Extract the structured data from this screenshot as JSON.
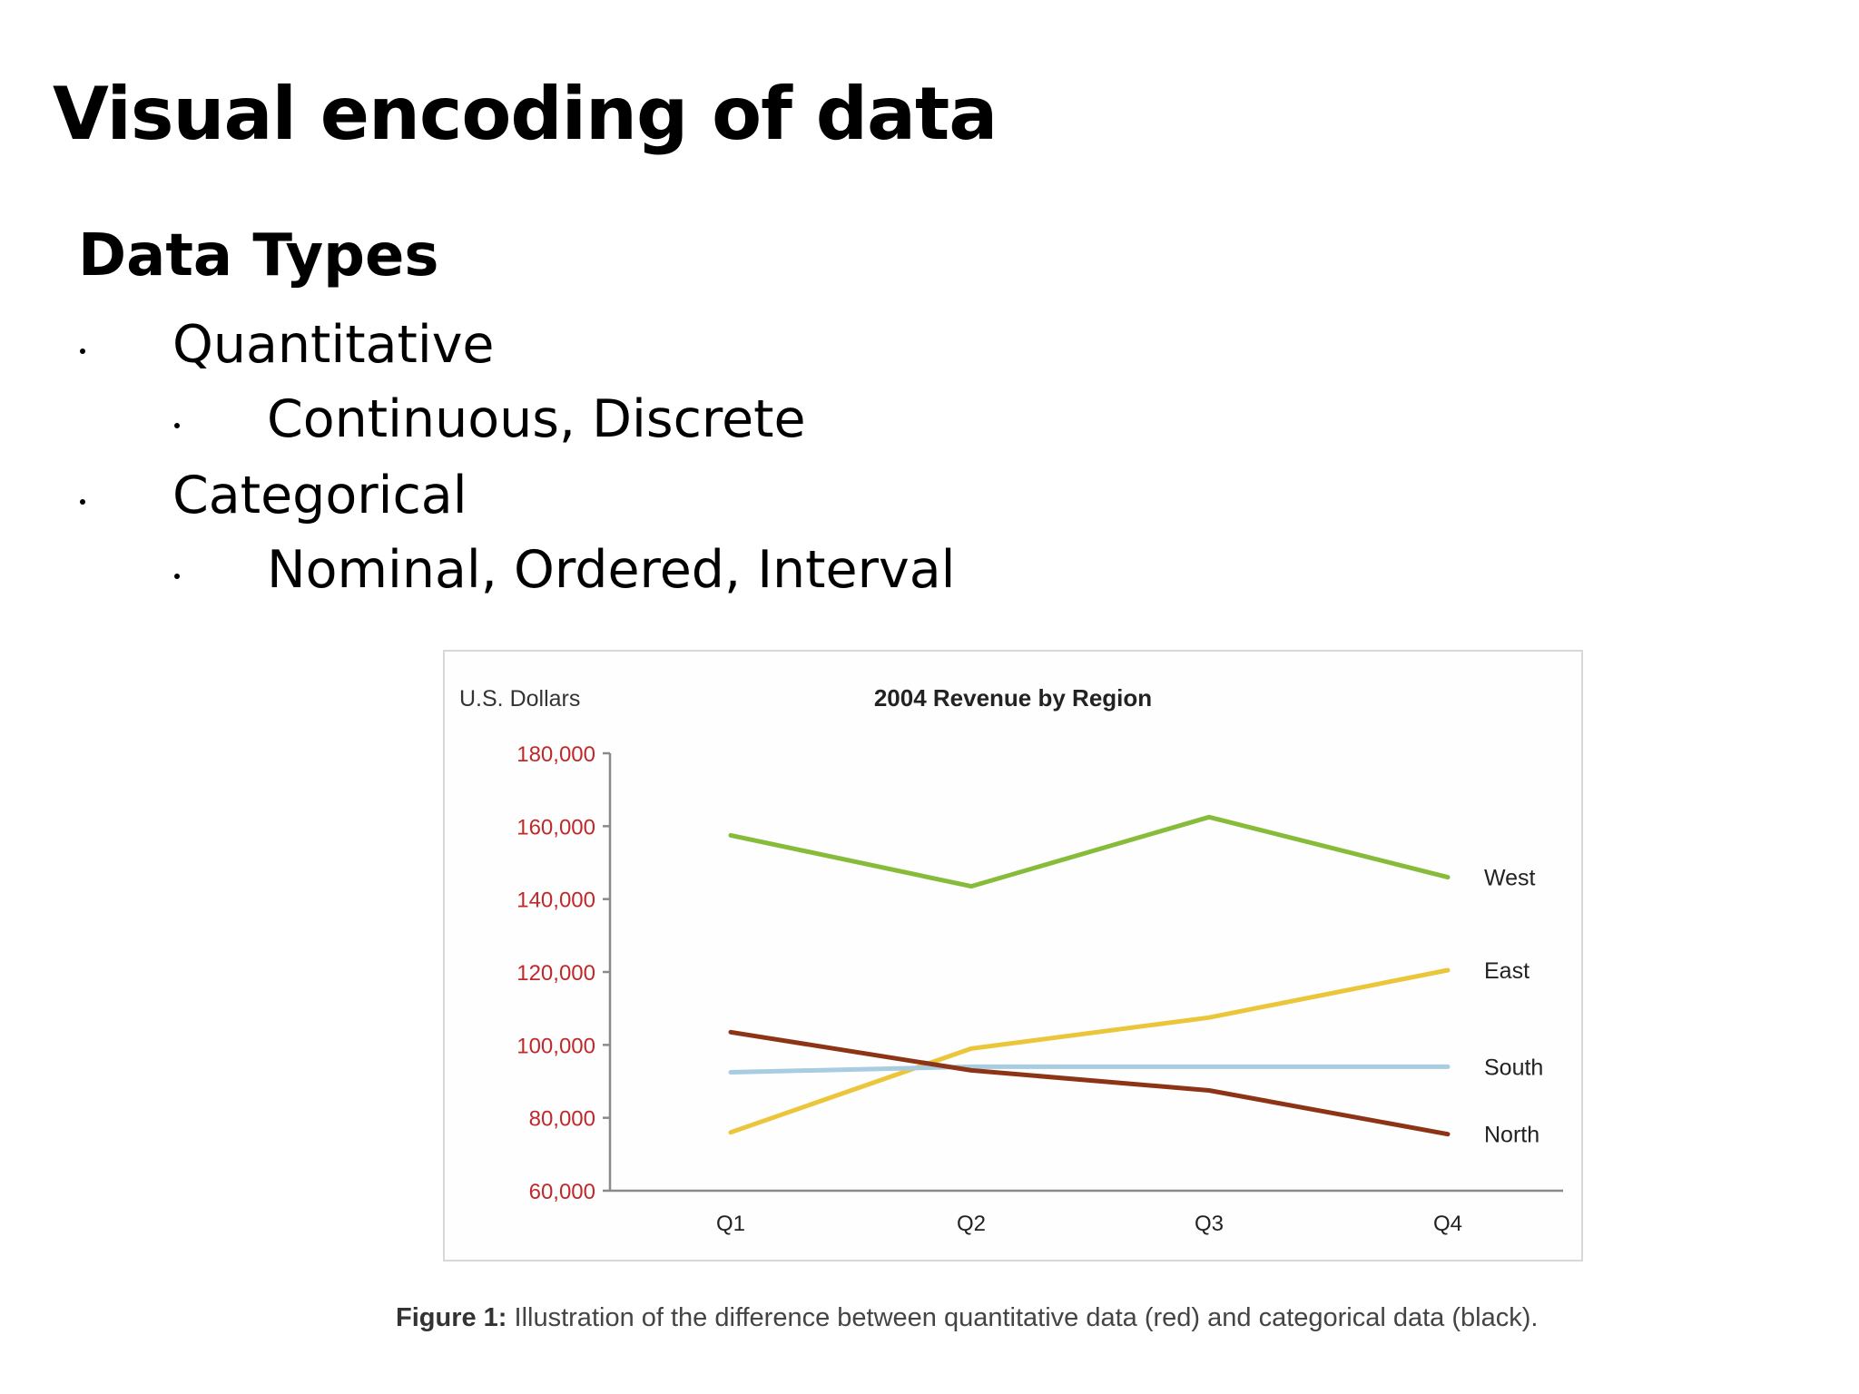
{
  "slide": {
    "title": "Visual encoding of data",
    "heading": "Data Types",
    "bullets": [
      {
        "text": "Quantitative",
        "children": [
          "Continuous, Discrete"
        ]
      },
      {
        "text": "Categorical",
        "children": [
          "Nominal, Ordered, Interval"
        ]
      }
    ]
  },
  "caption": {
    "label": "Figure 1:",
    "text": " Illustration of the difference between quantitative data (red) and categorical data (black)."
  },
  "colors": {
    "tick_red": "#c0282a",
    "axis": "#8a8a8a",
    "west": "#86bc3a",
    "east": "#ecc63a",
    "south": "#a8cce0",
    "north": "#8e3416"
  },
  "chart_data": {
    "type": "line",
    "title": "2004 Revenue by Region",
    "ylabel": "U.S. Dollars",
    "xlabel": "",
    "categories": [
      "Q1",
      "Q2",
      "Q3",
      "Q4"
    ],
    "ylim": [
      60000,
      180000
    ],
    "yticks": [
      60000,
      80000,
      100000,
      120000,
      140000,
      160000,
      180000
    ],
    "ytick_labels": [
      "60,000",
      "80,000",
      "100,000",
      "120,000",
      "140,000",
      "160,000",
      "180,000"
    ],
    "grid": false,
    "legend": "inline-right",
    "series": [
      {
        "name": "West",
        "color_key": "west",
        "values": [
          157500,
          143500,
          162500,
          146000
        ]
      },
      {
        "name": "East",
        "color_key": "east",
        "values": [
          76000,
          99000,
          107500,
          120500
        ]
      },
      {
        "name": "South",
        "color_key": "south",
        "values": [
          92500,
          94000,
          94000,
          94000
        ]
      },
      {
        "name": "North",
        "color_key": "north",
        "values": [
          103500,
          93000,
          87500,
          75500
        ]
      }
    ]
  }
}
